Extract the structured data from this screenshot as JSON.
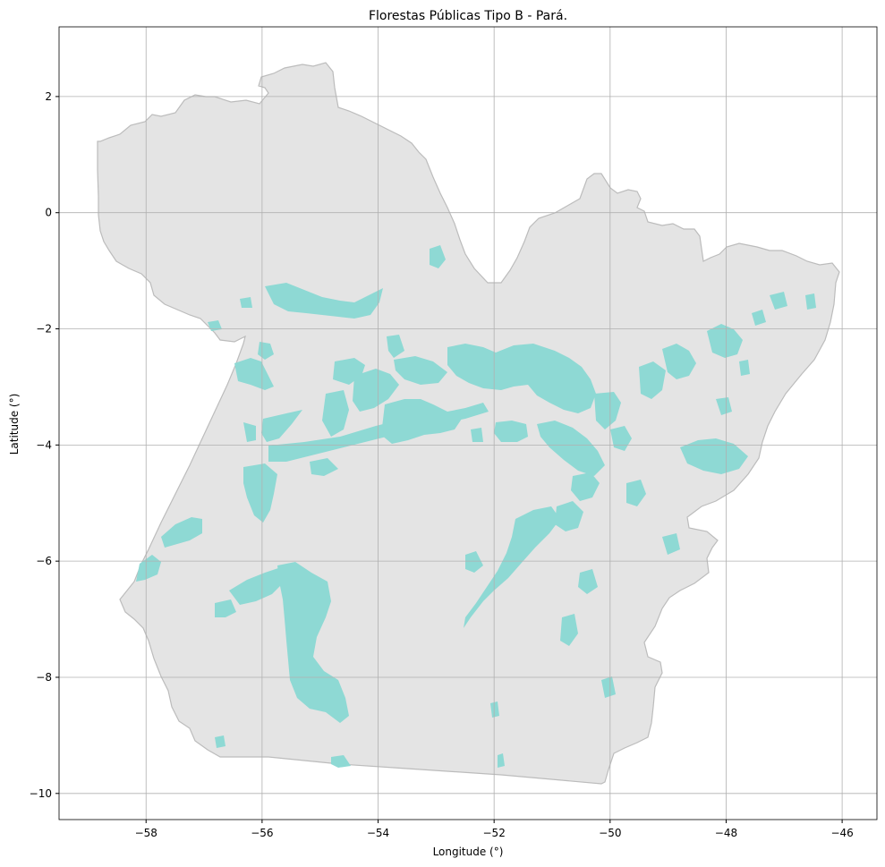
{
  "title": "Florestas Públicas Tipo B - Pará.",
  "xlabel": "Longitude (°)",
  "ylabel": "Latitude (°)",
  "x_ticks": [
    "−58",
    "−56",
    "−54",
    "−52",
    "−50",
    "−48",
    "−46"
  ],
  "y_ticks": [
    "2",
    "0",
    "−2",
    "−4",
    "−6",
    "−8",
    "−10"
  ],
  "colors": {
    "state_fill": "#e4e4e4",
    "state_border": "#bcbcbc",
    "forest_fill": "#8ed9d4",
    "grid": "#b0b0b0"
  },
  "chart_data": {
    "type": "map",
    "region": "Pará",
    "layer": "Florestas Públicas Tipo B",
    "xlim": [
      -59.5,
      -45.4
    ],
    "ylim": [
      -10.45,
      3.2
    ],
    "x_tick_values": [
      -58,
      -56,
      -54,
      -52,
      -50,
      -48,
      -46
    ],
    "y_tick_values": [
      2,
      0,
      -2,
      -4,
      -6,
      -8,
      -10
    ],
    "grid": true
  }
}
